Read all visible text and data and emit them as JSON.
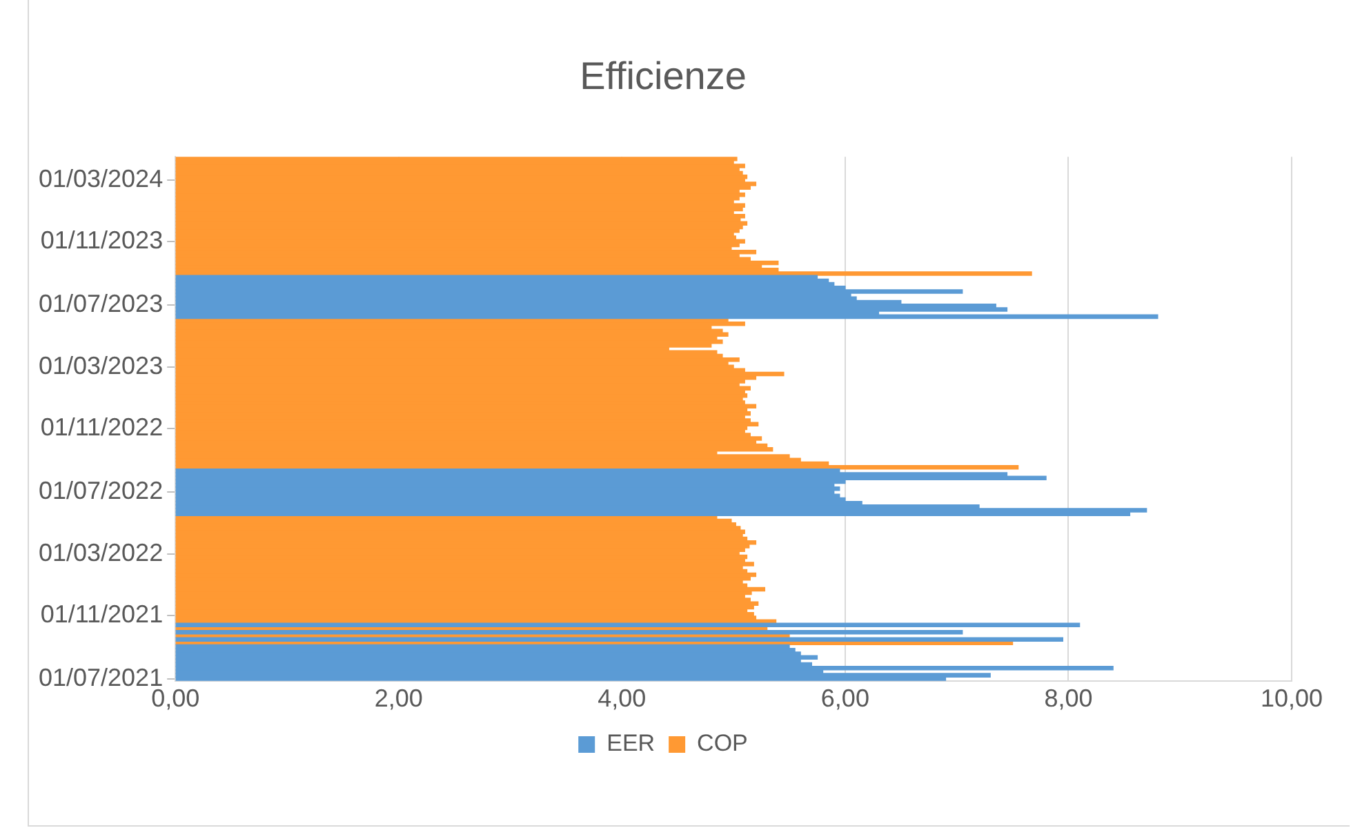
{
  "chart_data": {
    "type": "bar",
    "orientation": "horizontal",
    "title": "Efficienze",
    "ylim": [
      "2021-06-27",
      "2024-04-15"
    ],
    "yticks": [
      {
        "value": "2021-07-01",
        "label": "01/07/2021"
      },
      {
        "value": "2021-11-01",
        "label": "01/11/2021"
      },
      {
        "value": "2022-03-01",
        "label": "01/03/2022"
      },
      {
        "value": "2022-07-01",
        "label": "01/07/2022"
      },
      {
        "value": "2022-11-01",
        "label": "01/11/2022"
      },
      {
        "value": "2023-03-01",
        "label": "01/03/2023"
      },
      {
        "value": "2023-07-01",
        "label": "01/07/2023"
      },
      {
        "value": "2023-11-01",
        "label": "01/11/2023"
      },
      {
        "value": "2024-03-01",
        "label": "01/03/2024"
      }
    ],
    "xlim": [
      0,
      10
    ],
    "xticks": [
      {
        "value": 0,
        "label": "0,00"
      },
      {
        "value": 2,
        "label": "2,00"
      },
      {
        "value": 4,
        "label": "4,00"
      },
      {
        "value": 6,
        "label": "6,00"
      },
      {
        "value": 8,
        "label": "8,00"
      },
      {
        "value": 10,
        "label": "10,00"
      }
    ],
    "grid": "x",
    "legend": "bottom",
    "series": [
      {
        "name": "EER",
        "color": "#5b9bd5",
        "x": [
          "2021-07-01",
          "2021-07-08",
          "2021-07-15",
          "2021-07-22",
          "2021-07-29",
          "2021-08-05",
          "2021-08-12",
          "2021-08-19",
          "2021-08-26",
          "2021-09-02",
          "2021-09-16",
          "2021-09-30",
          "2021-10-14",
          "2022-05-19",
          "2022-05-26",
          "2022-06-02",
          "2022-06-09",
          "2022-06-16",
          "2022-06-23",
          "2022-06-30",
          "2022-07-07",
          "2022-07-14",
          "2022-07-21",
          "2022-07-28",
          "2022-08-04",
          "2022-08-11",
          "2023-06-08",
          "2023-06-15",
          "2023-06-22",
          "2023-06-29",
          "2023-07-06",
          "2023-07-13",
          "2023-07-20",
          "2023-07-27",
          "2023-08-03",
          "2023-08-10",
          "2023-08-17",
          "2023-08-24"
        ],
        "values": [
          6.9,
          7.3,
          5.8,
          8.4,
          5.7,
          5.6,
          5.75,
          5.6,
          5.55,
          5.5,
          7.95,
          7.05,
          8.1,
          8.55,
          8.7,
          7.2,
          6.15,
          6.0,
          5.95,
          5.9,
          5.95,
          5.9,
          6.0,
          7.8,
          7.45,
          5.95,
          8.8,
          6.3,
          7.45,
          7.35,
          6.5,
          6.1,
          6.05,
          7.05,
          6.0,
          5.9,
          5.85,
          5.75
        ]
      },
      {
        "name": "COP",
        "color": "#ff9933",
        "x": [
          "2021-09-09",
          "2021-09-23",
          "2021-10-07",
          "2021-10-21",
          "2021-10-28",
          "2021-11-04",
          "2021-11-11",
          "2021-11-18",
          "2021-11-25",
          "2021-12-02",
          "2021-12-09",
          "2021-12-16",
          "2021-12-23",
          "2021-12-30",
          "2022-01-06",
          "2022-01-13",
          "2022-01-20",
          "2022-01-27",
          "2022-02-03",
          "2022-02-10",
          "2022-02-17",
          "2022-02-24",
          "2022-03-03",
          "2022-03-10",
          "2022-03-17",
          "2022-03-24",
          "2022-03-31",
          "2022-04-07",
          "2022-04-14",
          "2022-04-21",
          "2022-04-28",
          "2022-05-05",
          "2022-05-12",
          "2022-08-18",
          "2022-08-25",
          "2022-09-01",
          "2022-09-08",
          "2022-09-15",
          "2022-09-22",
          "2022-09-29",
          "2022-10-06",
          "2022-10-13",
          "2022-10-20",
          "2022-10-27",
          "2022-11-03",
          "2022-11-10",
          "2022-11-17",
          "2022-11-24",
          "2022-12-01",
          "2022-12-08",
          "2022-12-15",
          "2022-12-22",
          "2022-12-29",
          "2023-01-05",
          "2023-01-12",
          "2023-01-19",
          "2023-01-26",
          "2023-02-02",
          "2023-02-09",
          "2023-02-16",
          "2023-02-23",
          "2023-03-02",
          "2023-03-09",
          "2023-03-16",
          "2023-03-23",
          "2023-03-30",
          "2023-04-06",
          "2023-04-13",
          "2023-04-20",
          "2023-04-27",
          "2023-05-04",
          "2023-05-11",
          "2023-05-18",
          "2023-05-25",
          "2023-06-01",
          "2023-08-31",
          "2023-09-07",
          "2023-09-14",
          "2023-09-21",
          "2023-09-28",
          "2023-10-05",
          "2023-10-12",
          "2023-10-19",
          "2023-10-26",
          "2023-11-02",
          "2023-11-09",
          "2023-11-16",
          "2023-11-23",
          "2023-11-30",
          "2023-12-07",
          "2023-12-14",
          "2023-12-21",
          "2023-12-28",
          "2024-01-04",
          "2024-01-11",
          "2024-01-18",
          "2024-01-25",
          "2024-02-01",
          "2024-02-08",
          "2024-02-15",
          "2024-02-22",
          "2024-02-29",
          "2024-03-07",
          "2024-03-14",
          "2024-03-21",
          "2024-03-28",
          "2024-04-04",
          "2024-04-11"
        ],
        "values": [
          7.5,
          5.5,
          5.3,
          5.38,
          5.2,
          5.18,
          5.12,
          5.18,
          5.22,
          5.15,
          5.1,
          5.16,
          5.28,
          5.12,
          5.08,
          5.15,
          5.2,
          5.12,
          5.08,
          5.18,
          5.1,
          5.12,
          5.05,
          5.1,
          5.14,
          5.2,
          5.12,
          5.08,
          5.1,
          5.06,
          5.02,
          4.98,
          4.85,
          7.55,
          5.85,
          5.6,
          5.5,
          4.85,
          5.35,
          5.3,
          5.2,
          5.25,
          5.15,
          5.1,
          5.12,
          5.22,
          5.15,
          5.1,
          5.15,
          5.12,
          5.2,
          5.1,
          5.08,
          5.12,
          5.1,
          5.15,
          5.05,
          5.1,
          5.2,
          5.45,
          5.1,
          5.0,
          4.95,
          5.05,
          4.9,
          4.85,
          4.42,
          4.8,
          4.9,
          4.85,
          4.95,
          4.9,
          4.8,
          5.1,
          4.95,
          7.67,
          5.4,
          5.25,
          5.4,
          5.15,
          5.05,
          5.2,
          4.98,
          5.05,
          5.1,
          5.02,
          5.0,
          5.05,
          5.08,
          5.12,
          5.06,
          5.1,
          5.0,
          5.08,
          5.1,
          5.0,
          5.05,
          5.1,
          5.05,
          5.15,
          5.2,
          5.1,
          5.12,
          5.08,
          5.05,
          5.1,
          5.0,
          5.03
        ]
      }
    ]
  }
}
